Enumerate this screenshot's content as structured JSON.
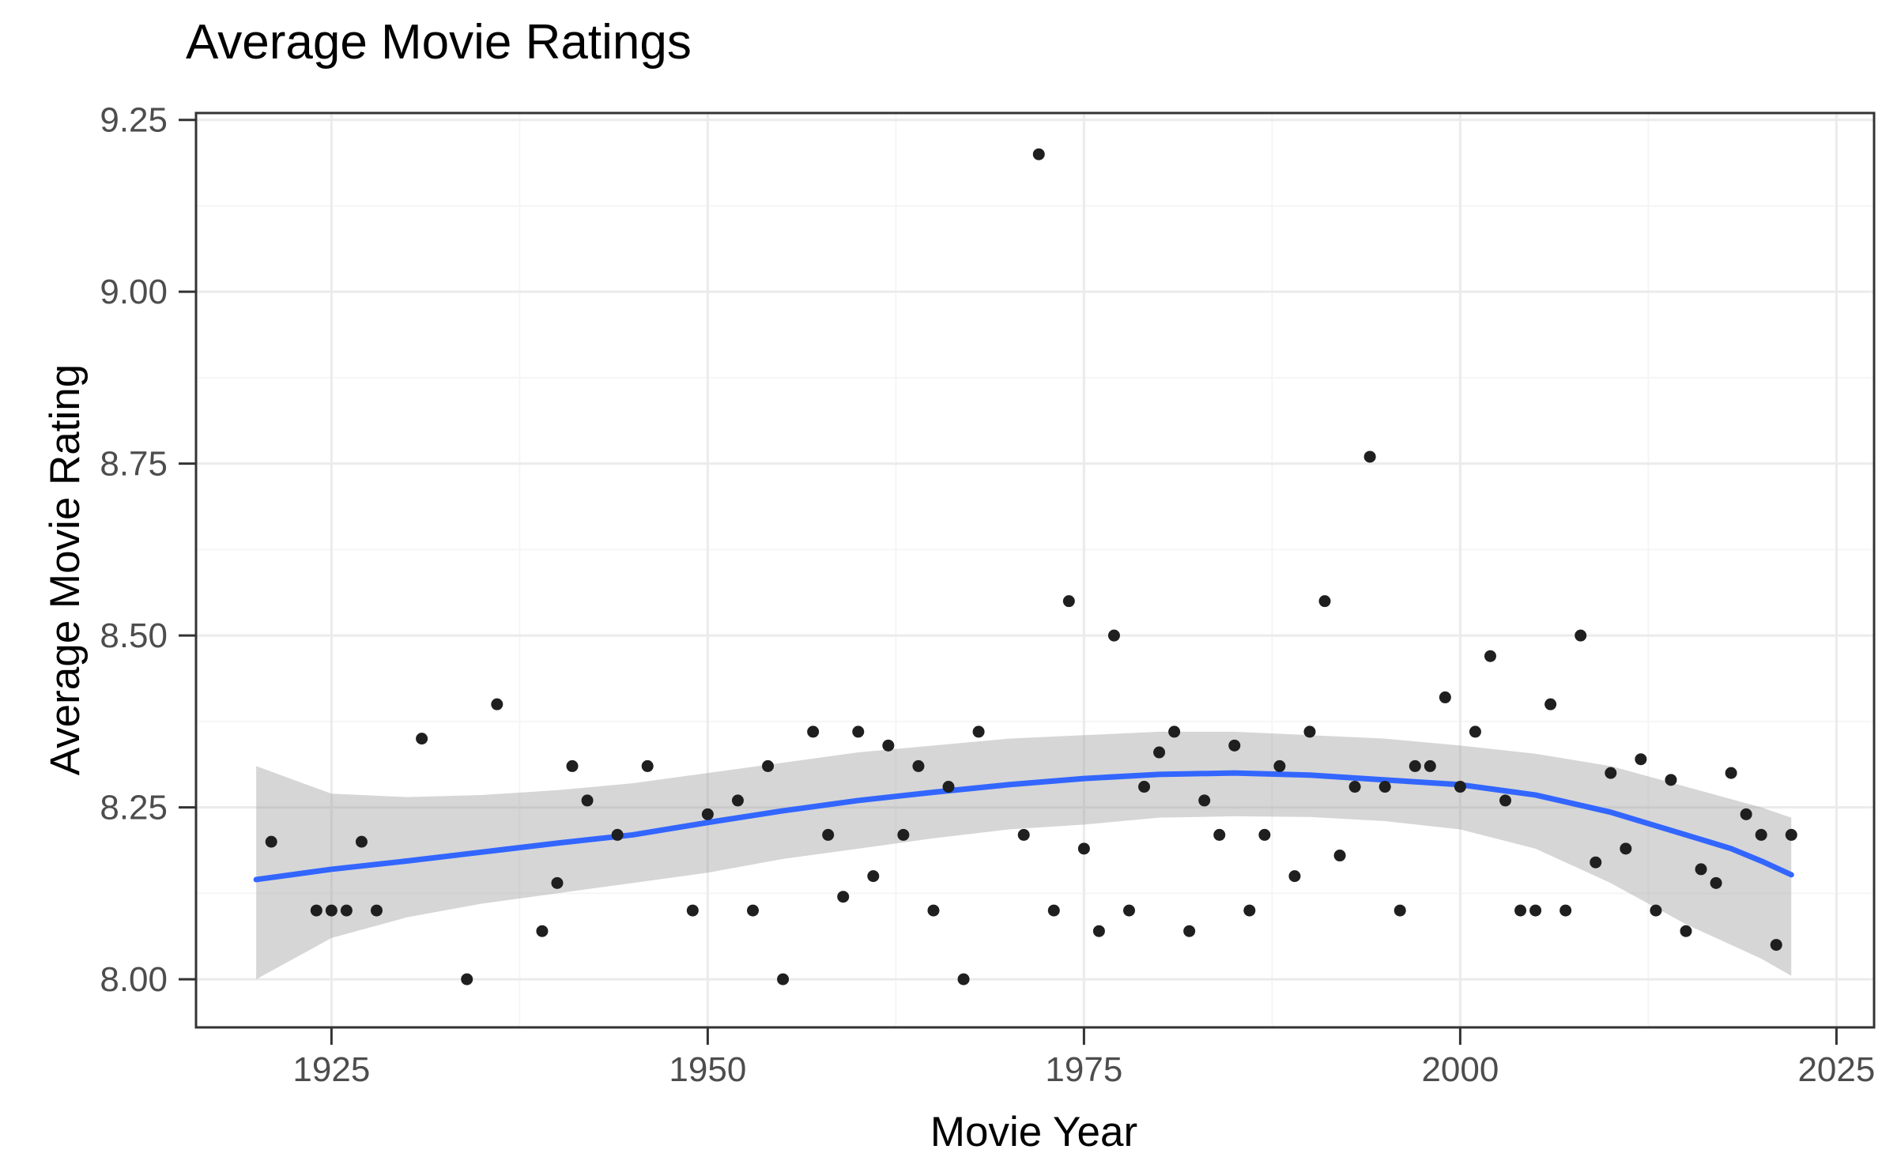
{
  "title": "Average Movie Ratings",
  "chart_data": {
    "type": "scatter",
    "title": "Average Movie Ratings",
    "xlabel": "Movie Year",
    "ylabel": "Average Movie Rating",
    "xlim": [
      1916,
      2027.5
    ],
    "ylim": [
      7.93,
      9.26
    ],
    "x_ticks": [
      1925,
      1950,
      1975,
      2000,
      2025
    ],
    "x_minor_ticks": [
      1937.5,
      1962.5,
      1987.5,
      2012.5
    ],
    "y_ticks": [
      8.0,
      8.25,
      8.5,
      8.75,
      9.0,
      9.25
    ],
    "y_tick_labels": [
      "8.00",
      "8.25",
      "8.50",
      "8.75",
      "9.00",
      "9.25"
    ],
    "y_minor_ticks": [
      8.125,
      8.375,
      8.625,
      8.875,
      9.125
    ],
    "grid": true,
    "legend": "none",
    "points": [
      [
        1921,
        8.2
      ],
      [
        1924,
        8.1
      ],
      [
        1925,
        8.1
      ],
      [
        1926,
        8.1
      ],
      [
        1927,
        8.2
      ],
      [
        1928,
        8.1
      ],
      [
        1931,
        8.35
      ],
      [
        1934,
        8.0
      ],
      [
        1936,
        8.4
      ],
      [
        1939,
        8.07
      ],
      [
        1940,
        8.14
      ],
      [
        1941,
        8.31
      ],
      [
        1942,
        8.26
      ],
      [
        1944,
        8.21
      ],
      [
        1946,
        8.31
      ],
      [
        1949,
        8.1
      ],
      [
        1950,
        8.24
      ],
      [
        1952,
        8.26
      ],
      [
        1953,
        8.1
      ],
      [
        1954,
        8.31
      ],
      [
        1955,
        8.0
      ],
      [
        1957,
        8.36
      ],
      [
        1958,
        8.21
      ],
      [
        1959,
        8.12
      ],
      [
        1960,
        8.36
      ],
      [
        1961,
        8.15
      ],
      [
        1962,
        8.34
      ],
      [
        1963,
        8.21
      ],
      [
        1964,
        8.31
      ],
      [
        1965,
        8.1
      ],
      [
        1966,
        8.28
      ],
      [
        1967,
        8.0
      ],
      [
        1968,
        8.36
      ],
      [
        1971,
        8.21
      ],
      [
        1972,
        9.2
      ],
      [
        1973,
        8.1
      ],
      [
        1974,
        8.55
      ],
      [
        1975,
        8.19
      ],
      [
        1976,
        8.07
      ],
      [
        1977,
        8.5
      ],
      [
        1978,
        8.1
      ],
      [
        1979,
        8.28
      ],
      [
        1980,
        8.33
      ],
      [
        1981,
        8.36
      ],
      [
        1982,
        8.07
      ],
      [
        1983,
        8.26
      ],
      [
        1984,
        8.21
      ],
      [
        1985,
        8.34
      ],
      [
        1986,
        8.1
      ],
      [
        1987,
        8.21
      ],
      [
        1988,
        8.31
      ],
      [
        1989,
        8.15
      ],
      [
        1990,
        8.36
      ],
      [
        1991,
        8.55
      ],
      [
        1992,
        8.18
      ],
      [
        1993,
        8.28
      ],
      [
        1994,
        8.76
      ],
      [
        1995,
        8.28
      ],
      [
        1996,
        8.1
      ],
      [
        1997,
        8.31
      ],
      [
        1998,
        8.31
      ],
      [
        1999,
        8.41
      ],
      [
        2000,
        8.28
      ],
      [
        2001,
        8.36
      ],
      [
        2002,
        8.47
      ],
      [
        2003,
        8.26
      ],
      [
        2004,
        8.1
      ],
      [
        2005,
        8.1
      ],
      [
        2006,
        8.4
      ],
      [
        2007,
        8.1
      ],
      [
        2008,
        8.5
      ],
      [
        2009,
        8.17
      ],
      [
        2010,
        8.3
      ],
      [
        2011,
        8.19
      ],
      [
        2012,
        8.32
      ],
      [
        2013,
        8.1
      ],
      [
        2014,
        8.29
      ],
      [
        2015,
        8.07
      ],
      [
        2016,
        8.16
      ],
      [
        2017,
        8.14
      ],
      [
        2018,
        8.3
      ],
      [
        2019,
        8.24
      ],
      [
        2020,
        8.21
      ],
      [
        2021,
        8.05
      ],
      [
        2022,
        8.21
      ]
    ],
    "smooth_line": [
      [
        1920,
        8.145
      ],
      [
        1925,
        8.16
      ],
      [
        1930,
        8.172
      ],
      [
        1935,
        8.185
      ],
      [
        1940,
        8.198
      ],
      [
        1945,
        8.21
      ],
      [
        1950,
        8.228
      ],
      [
        1955,
        8.245
      ],
      [
        1960,
        8.26
      ],
      [
        1965,
        8.272
      ],
      [
        1970,
        8.283
      ],
      [
        1975,
        8.292
      ],
      [
        1980,
        8.298
      ],
      [
        1985,
        8.3
      ],
      [
        1990,
        8.297
      ],
      [
        1995,
        8.29
      ],
      [
        2000,
        8.283
      ],
      [
        2005,
        8.268
      ],
      [
        2010,
        8.243
      ],
      [
        2015,
        8.21
      ],
      [
        2018,
        8.19
      ],
      [
        2020,
        8.172
      ],
      [
        2022,
        8.152
      ]
    ],
    "ribbon": [
      [
        1920,
        8.0,
        8.31
      ],
      [
        1925,
        8.06,
        8.27
      ],
      [
        1930,
        8.09,
        8.265
      ],
      [
        1935,
        8.11,
        8.268
      ],
      [
        1940,
        8.125,
        8.275
      ],
      [
        1945,
        8.14,
        8.285
      ],
      [
        1950,
        8.155,
        8.3
      ],
      [
        1955,
        8.175,
        8.315
      ],
      [
        1960,
        8.19,
        8.33
      ],
      [
        1965,
        8.205,
        8.34
      ],
      [
        1970,
        8.218,
        8.35
      ],
      [
        1975,
        8.225,
        8.355
      ],
      [
        1980,
        8.235,
        8.36
      ],
      [
        1985,
        8.237,
        8.36
      ],
      [
        1990,
        8.236,
        8.355
      ],
      [
        1995,
        8.23,
        8.35
      ],
      [
        2000,
        8.218,
        8.34
      ],
      [
        2005,
        8.19,
        8.328
      ],
      [
        2010,
        8.14,
        8.31
      ],
      [
        2015,
        8.08,
        8.28
      ],
      [
        2020,
        8.03,
        8.25
      ],
      [
        2022,
        8.005,
        8.235
      ]
    ],
    "colors": {
      "point": "#1f1f1f",
      "line": "#3366FF",
      "ribbon": "#999999",
      "ribbon_opacity": 0.4,
      "grid_major": "#ebebeb",
      "grid_minor": "#f5f5f5",
      "panel_border": "#333333",
      "tick": "#333333",
      "tick_label": "#4d4d4d",
      "text": "#000000",
      "background": "#ffffff"
    }
  }
}
